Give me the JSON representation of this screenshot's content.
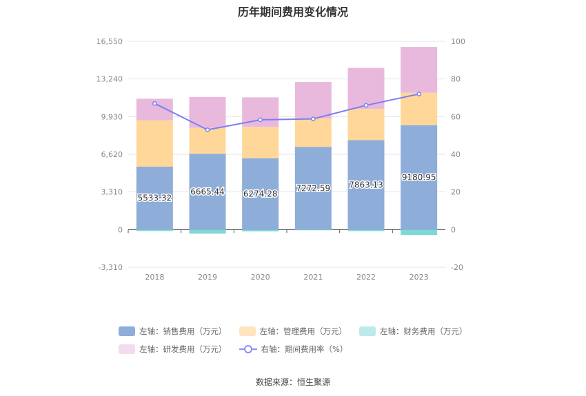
{
  "title": "历年期间费用变化情况",
  "source": "数据来源：恒生聚源",
  "chart_data": {
    "type": "bar",
    "stacked": true,
    "categories": [
      "2018",
      "2019",
      "2020",
      "2021",
      "2022",
      "2023"
    ],
    "left_axis": {
      "ticks": [
        "16,550",
        "13,240",
        "9,930",
        "6,620",
        "3,310",
        "0",
        "-3,310"
      ],
      "range": [
        -3310,
        16550
      ]
    },
    "right_axis": {
      "ticks": [
        "100",
        "80",
        "60",
        "40",
        "20",
        "0",
        "-20"
      ],
      "range": [
        -20,
        100
      ]
    },
    "series": [
      {
        "name": "左轴：销售费用（万元）",
        "axis": "left",
        "color": "#8eadd9",
        "values": [
          5533.32,
          6665.44,
          6274.28,
          7272.59,
          7863.13,
          9180.95
        ],
        "labels": [
          "5533.32",
          "6665.44",
          "6274.28",
          "7272.59",
          "7863.13",
          "9180.95"
        ]
      },
      {
        "name": "左轴：管理费用（万元）",
        "axis": "left",
        "color": "#ffd899",
        "values": [
          4070,
          2280,
          2750,
          2500,
          2750,
          2850
        ]
      },
      {
        "name": "左轴：财务费用（万元）",
        "axis": "left",
        "color": "#7fd7d7",
        "values": [
          -130,
          -360,
          -160,
          -60,
          -140,
          -480
        ]
      },
      {
        "name": "左轴：研发费用（万元）",
        "axis": "left",
        "color": "#e8b9dc",
        "values": [
          1900,
          2700,
          2600,
          3200,
          3600,
          4030
        ]
      },
      {
        "name": "右轴：期间费用率（%）",
        "axis": "right",
        "type": "line",
        "color": "#7b7ff0",
        "values": [
          67,
          53,
          58.3,
          58.8,
          66,
          72
        ]
      }
    ],
    "legend": {
      "position": "bottom",
      "rows": [
        [
          {
            "label": "左轴：销售费用（万元）",
            "color": "#8eadd9"
          },
          {
            "label": "左轴：管理费用（万元）",
            "color": "#ffe4bf"
          },
          {
            "label": "左轴：财务费用（万元）",
            "color": "#bfeaea"
          }
        ],
        [
          {
            "label": "左轴：研发费用（万元）",
            "color": "#f3dcee"
          },
          {
            "label": "右轴：期间费用率（%）",
            "color": "#8c8cf0",
            "marker": "line"
          }
        ]
      ]
    }
  }
}
